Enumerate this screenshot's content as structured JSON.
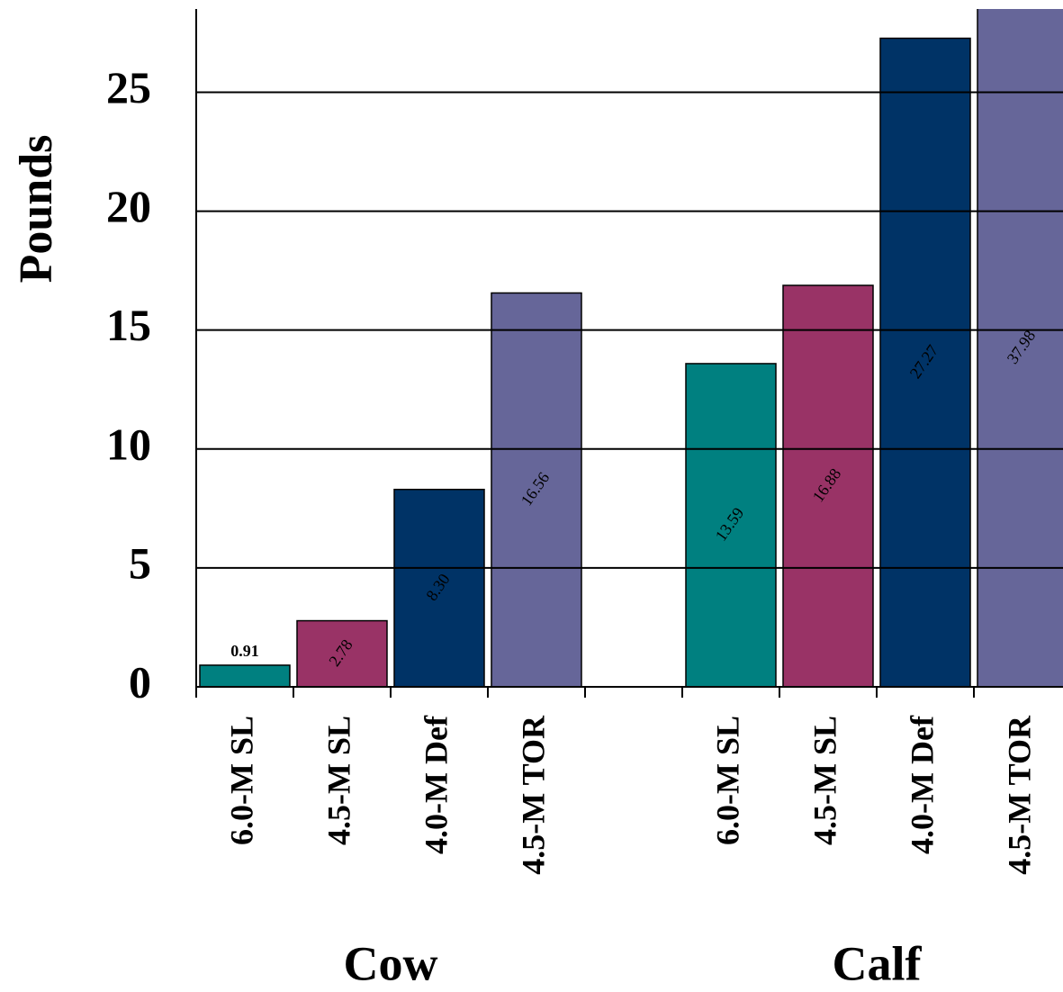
{
  "chart_data": {
    "type": "bar",
    "ylabel": "Pounds",
    "categories": [
      "6.0-M SL",
      "4.5-M SL",
      "4.0-M Def",
      "4.5-M TOR",
      null,
      "6.0-M SL",
      "4.5-M SL",
      "4.0-M Def",
      "4.5-M TOR"
    ],
    "values": [
      0.91,
      2.78,
      8.3,
      16.56,
      null,
      13.59,
      16.88,
      27.27,
      37.98
    ],
    "value_labels": [
      "0.91",
      "2.78",
      "8.30",
      "16.56",
      null,
      "13.59",
      "16.88",
      "27.27",
      "37.98"
    ],
    "colors": [
      "#008080",
      "#993366",
      "#003366",
      "#666699",
      null,
      "#008080",
      "#993366",
      "#003366",
      "#666699"
    ],
    "groups": [
      "Cow",
      "Calf"
    ],
    "ylim": [
      0,
      28.5
    ],
    "yticks": [
      0,
      5,
      10,
      15,
      20,
      25
    ],
    "grid": true
  }
}
